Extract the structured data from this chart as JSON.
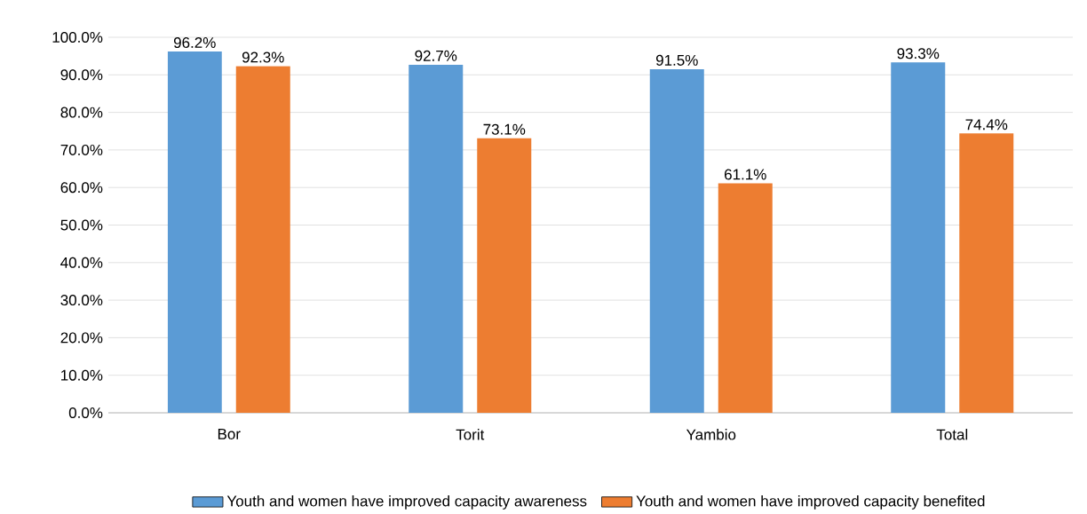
{
  "chart_data": {
    "type": "bar",
    "categories": [
      "Bor",
      "Torit",
      "Yambio",
      "Total"
    ],
    "series": [
      {
        "name": "Youth and women have improved capacity awareness",
        "color": "#5b9bd5",
        "values": [
          96.2,
          92.7,
          91.5,
          93.3
        ],
        "value_labels": [
          "96.2%",
          "92.7%",
          "91.5%",
          "93.3%"
        ]
      },
      {
        "name": "Youth and women have improved capacity benefited",
        "color": "#ed7d31",
        "values": [
          92.3,
          73.1,
          61.1,
          74.4
        ],
        "value_labels": [
          "92.3%",
          "73.1%",
          "61.1%",
          "74.4%"
        ]
      }
    ],
    "ylim": [
      0,
      100
    ],
    "yticks": [
      {
        "value": 0,
        "label": "0.0%"
      },
      {
        "value": 10,
        "label": "10.0%"
      },
      {
        "value": 20,
        "label": "20.0%"
      },
      {
        "value": 30,
        "label": "30.0%"
      },
      {
        "value": 40,
        "label": "40.0%"
      },
      {
        "value": 50,
        "label": "50.0%"
      },
      {
        "value": 60,
        "label": "60.0%"
      },
      {
        "value": 70,
        "label": "70.0%"
      },
      {
        "value": 80,
        "label": "80.0%"
      },
      {
        "value": 90,
        "label": "90.0%"
      },
      {
        "value": 100,
        "label": "100.0%"
      }
    ],
    "grid": "y",
    "legend": "bottom"
  }
}
